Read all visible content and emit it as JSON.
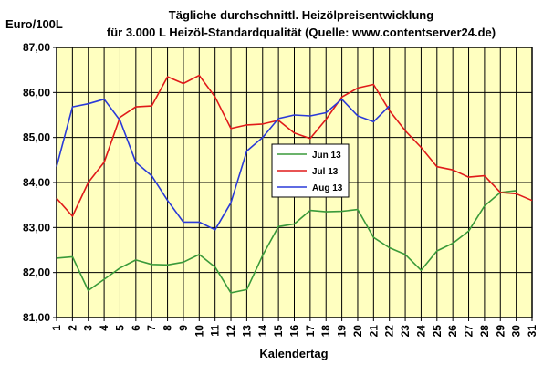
{
  "chart_data": {
    "type": "line",
    "title": "Tägliche durchschnittl. Heizölpreisentwicklung",
    "subtitle": "für 3.000 L Heizöl-Standardqualität (Quelle: www.contentserver24.de)",
    "ylabel": "Euro/100L",
    "xlabel": "Kalendertag",
    "ylim": [
      81,
      87
    ],
    "yticks": [
      "81,00",
      "82,00",
      "83,00",
      "84,00",
      "85,00",
      "86,00",
      "87,00"
    ],
    "x": [
      1,
      2,
      3,
      4,
      5,
      6,
      7,
      8,
      9,
      10,
      11,
      12,
      13,
      14,
      15,
      16,
      17,
      18,
      19,
      20,
      21,
      22,
      23,
      24,
      25,
      26,
      27,
      28,
      29,
      30,
      31
    ],
    "xtick_labels": [
      "1",
      "2",
      "3",
      "4",
      "5",
      "6",
      "7",
      "8",
      "9",
      "10",
      "11",
      "12",
      "13",
      "14",
      "15",
      "16",
      "17",
      "18",
      "19",
      "20",
      "21",
      "22",
      "23",
      "24",
      "25",
      "26",
      "27",
      "28",
      "29",
      "30",
      "31"
    ],
    "grid": true,
    "legend_position": "center-right",
    "background_color": "#ffffc0",
    "series": [
      {
        "name": "Jun 13",
        "color": "#3a9a3a",
        "values": [
          82.32,
          82.35,
          81.6,
          81.85,
          82.1,
          82.28,
          82.18,
          82.17,
          82.23,
          82.4,
          82.12,
          81.55,
          81.62,
          82.38,
          83.02,
          83.08,
          83.38,
          83.35,
          83.36,
          83.4,
          82.78,
          82.55,
          82.4,
          82.05,
          82.48,
          82.65,
          82.92,
          83.48,
          83.78,
          83.82,
          null
        ]
      },
      {
        "name": "Jul 13",
        "color": "#e01a1a",
        "values": [
          83.65,
          83.25,
          84.0,
          84.45,
          85.45,
          85.68,
          85.7,
          86.35,
          86.2,
          86.38,
          85.9,
          85.2,
          85.28,
          85.3,
          85.38,
          85.1,
          84.98,
          85.4,
          85.9,
          86.1,
          86.18,
          85.6,
          85.15,
          84.78,
          84.35,
          84.28,
          84.12,
          84.15,
          83.78,
          83.75,
          83.6
        ]
      },
      {
        "name": "Aug 13",
        "color": "#2a3ad8",
        "values": [
          84.35,
          85.68,
          85.75,
          85.85,
          85.38,
          84.45,
          84.15,
          83.6,
          83.12,
          83.12,
          82.95,
          83.55,
          84.7,
          85.0,
          85.42,
          85.5,
          85.48,
          85.55,
          85.85,
          85.48,
          85.35,
          85.7,
          null,
          null,
          null,
          null,
          null,
          null,
          null,
          null,
          null
        ]
      }
    ]
  }
}
